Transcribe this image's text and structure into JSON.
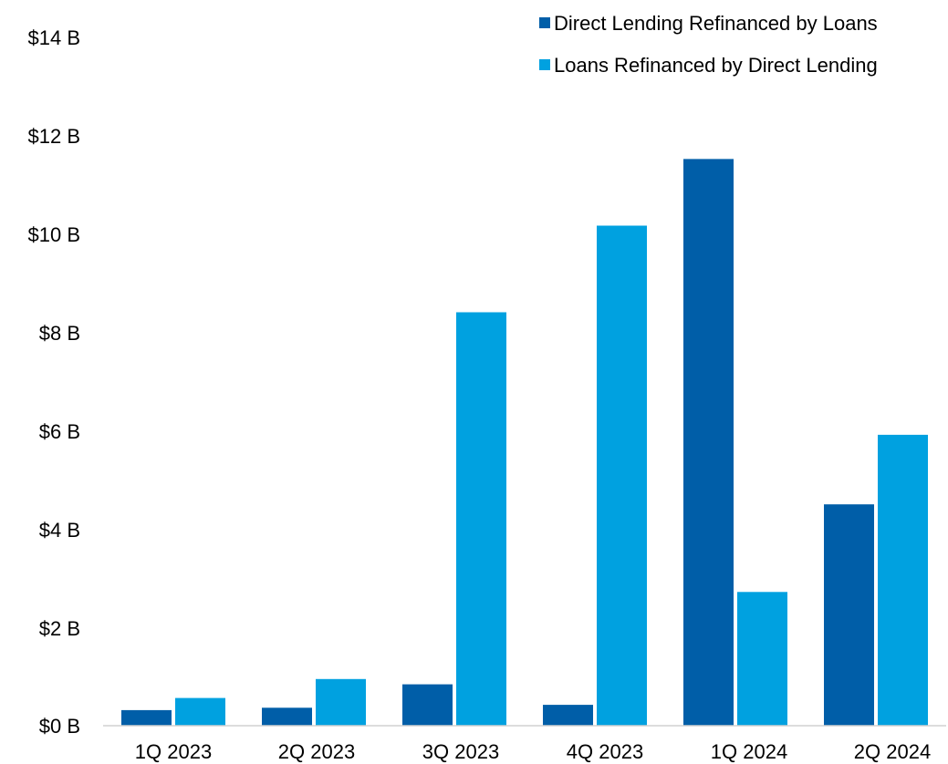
{
  "chart_data": {
    "type": "bar",
    "categories": [
      "1Q 2023",
      "2Q 2023",
      "3Q 2023",
      "4Q 2023",
      "1Q 2024",
      "2Q 2024"
    ],
    "series": [
      {
        "name": "Direct Lending Refinanced by Loans",
        "color": "#005EA8",
        "values": [
          0.32,
          0.37,
          0.85,
          0.43,
          11.65,
          4.55
        ]
      },
      {
        "name": "Loans Refinanced by Direct Lending",
        "color": "#00A1E0",
        "values": [
          0.57,
          0.96,
          8.5,
          10.28,
          2.75,
          5.98
        ]
      }
    ],
    "yticks": [
      "$0 B",
      "$2 B",
      "$4 B",
      "$6 B",
      "$8 B",
      "$10 B",
      "$12 B",
      "$14 B"
    ],
    "ylim": [
      0,
      14
    ],
    "ylabel": "",
    "xlabel": "",
    "title": "",
    "grid": false,
    "legend_position": "top-right"
  }
}
